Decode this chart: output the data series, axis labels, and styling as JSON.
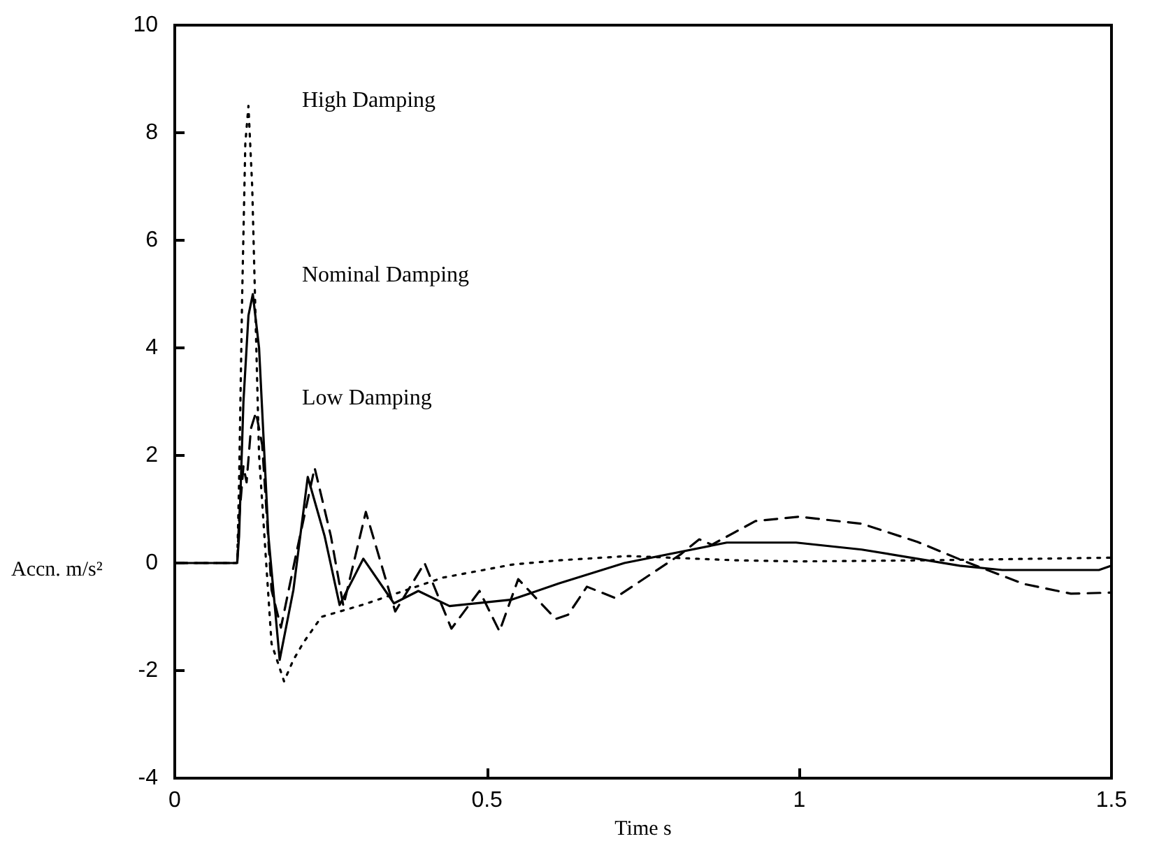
{
  "chart_data": {
    "type": "line",
    "xlabel": "Time s",
    "ylabel": "Accn. m/s²",
    "xlim": [
      0,
      1.5
    ],
    "ylim": [
      -4,
      10
    ],
    "xticks": [
      0,
      0.5,
      1,
      1.5
    ],
    "yticks": [
      -4,
      -2,
      0,
      2,
      4,
      6,
      8,
      10
    ],
    "grid": false,
    "marker": "none",
    "annotations": [
      "High Damping",
      "Nominal Damping",
      "Low Damping"
    ],
    "series": [
      {
        "color": "#000000",
        "line_style": "dotted",
        "x": [
          0,
          0.1,
          0.103,
          0.108,
          0.113,
          0.118,
          0.124,
          0.135,
          0.155,
          0.175,
          0.19,
          0.206,
          0.235,
          0.3,
          0.43,
          0.54,
          0.615,
          0.727,
          0.9,
          1.0,
          1.2,
          1.5
        ],
        "values": [
          0,
          0,
          1.5,
          5,
          7.8,
          8.5,
          7,
          2,
          -1.5,
          -2.2,
          -1.8,
          -1.48,
          -1.0,
          -0.78,
          -0.27,
          -0.03,
          0.05,
          0.13,
          0.05,
          0.03,
          0.05,
          0.1
        ]
      },
      {
        "color": "#000000",
        "line_style": "solid",
        "x": [
          0,
          0.1,
          0.103,
          0.11,
          0.118,
          0.125,
          0.135,
          0.15,
          0.168,
          0.19,
          0.213,
          0.24,
          0.264,
          0.302,
          0.351,
          0.39,
          0.44,
          0.54,
          0.615,
          0.72,
          0.884,
          0.995,
          1.1,
          1.257,
          1.325,
          1.48,
          1.5
        ],
        "values": [
          0,
          0,
          0.5,
          3,
          4.6,
          5,
          4,
          0.5,
          -1.8,
          -0.5,
          1.6,
          0.5,
          -0.78,
          0.08,
          -0.75,
          -0.52,
          -0.8,
          -0.68,
          -0.38,
          0,
          0.38,
          0.38,
          0.25,
          -0.05,
          -0.13,
          -0.13,
          -0.05
        ]
      },
      {
        "color": "#000000",
        "line_style": "dashed",
        "x": [
          0,
          0.1,
          0.103,
          0.11,
          0.115,
          0.122,
          0.13,
          0.14,
          0.155,
          0.17,
          0.195,
          0.224,
          0.25,
          0.27,
          0.306,
          0.353,
          0.4,
          0.443,
          0.488,
          0.52,
          0.55,
          0.61,
          0.63,
          0.66,
          0.705,
          0.81,
          0.84,
          0.86,
          0.93,
          1.0,
          1.1,
          1.19,
          1.265,
          1.36,
          1.435,
          1.5
        ],
        "values": [
          0,
          0,
          0.8,
          1.8,
          1.5,
          2.5,
          2.8,
          2.2,
          -0.5,
          -1.2,
          0.2,
          1.77,
          0.5,
          -0.8,
          0.95,
          -0.9,
          0.0,
          -1.22,
          -0.52,
          -1.27,
          -0.3,
          -1.04,
          -0.96,
          -0.44,
          -0.65,
          0.16,
          0.44,
          0.34,
          0.78,
          0.86,
          0.73,
          0.39,
          0.03,
          -0.39,
          -0.57,
          -0.55
        ]
      }
    ]
  }
}
